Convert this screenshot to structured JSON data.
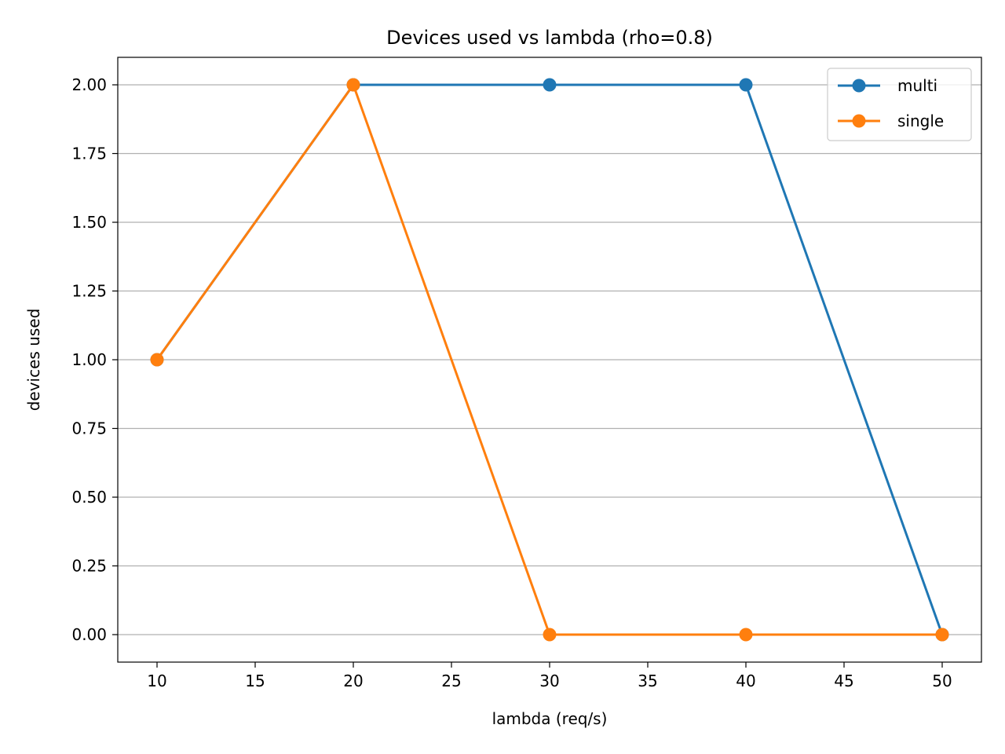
{
  "chart_data": {
    "type": "line",
    "title": "Devices used vs lambda (rho=0.8)",
    "xlabel": "lambda (req/s)",
    "ylabel": "devices used",
    "x": [
      10,
      20,
      30,
      40,
      50
    ],
    "xlim": [
      8,
      52
    ],
    "ylim": [
      -0.1,
      2.1
    ],
    "xticks": [
      10,
      15,
      20,
      25,
      30,
      35,
      40,
      45,
      50
    ],
    "xtick_labels": [
      "10",
      "15",
      "20",
      "25",
      "30",
      "35",
      "40",
      "45",
      "50"
    ],
    "yticks": [
      0,
      0.25,
      0.5,
      0.75,
      1,
      1.25,
      1.5,
      1.75,
      2
    ],
    "ytick_labels": [
      "0.00",
      "0.25",
      "0.50",
      "0.75",
      "1.00",
      "1.25",
      "1.50",
      "1.75",
      "2.00"
    ],
    "grid": "horizontal",
    "legend_position": "top-right",
    "marker": "circle",
    "series": [
      {
        "name": "multi",
        "color": "#1f77b4",
        "values": [
          1,
          2,
          2,
          2,
          0
        ]
      },
      {
        "name": "single",
        "color": "#ff7f0e",
        "values": [
          1,
          2,
          0,
          0,
          0
        ]
      }
    ]
  }
}
